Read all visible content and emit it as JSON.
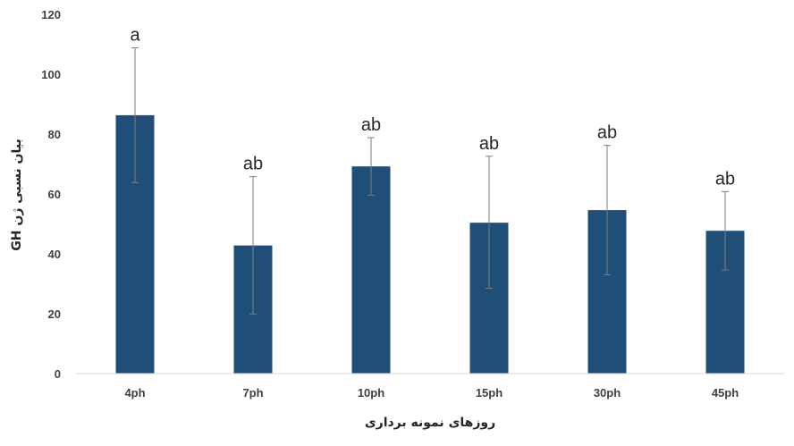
{
  "chart_data": {
    "type": "bar",
    "title": "",
    "xlabel": "روزهای نمونه برداری",
    "ylabel": "بیان نسبی ژن GH",
    "ylim": [
      0,
      120
    ],
    "yticks": [
      0,
      20,
      40,
      60,
      80,
      100,
      120
    ],
    "grid": false,
    "legend": "none",
    "categories": [
      "4ph",
      "7ph",
      "10ph",
      "15ph",
      "30ph",
      "45ph"
    ],
    "values": [
      86.3,
      42.8,
      69.2,
      50.4,
      54.6,
      47.7
    ],
    "error_upper": [
      108.8,
      65.8,
      78.8,
      72.6,
      76.2,
      60.8
    ],
    "error_lower": [
      63.8,
      19.9,
      59.6,
      28.5,
      33.0,
      34.6
    ],
    "significance_labels": [
      "a",
      "ab",
      "ab",
      "ab",
      "ab",
      "ab"
    ],
    "bar_color": "#1F4E79",
    "axis_color": "#D9D9D9"
  }
}
